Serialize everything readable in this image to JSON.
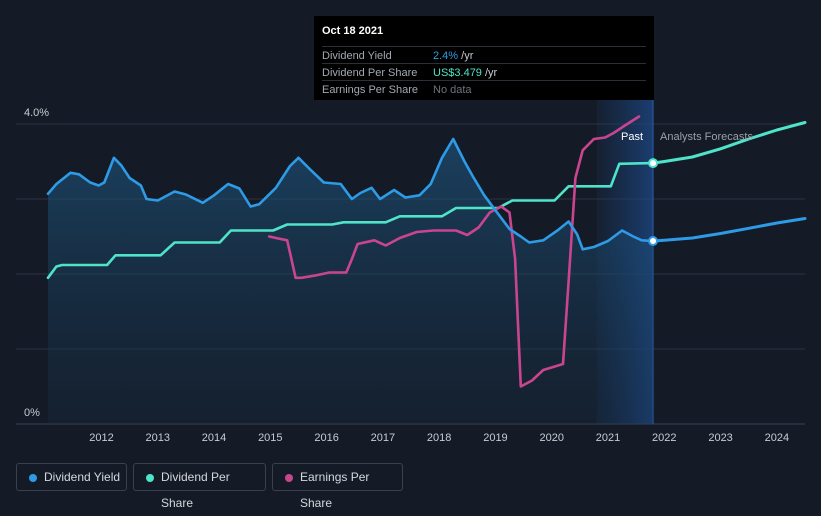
{
  "tooltip": {
    "date": "Oct 18 2021",
    "rows": [
      {
        "label": "Dividend Yield",
        "value": "2.4%",
        "unit": " /yr",
        "color": "#2d9be6"
      },
      {
        "label": "Dividend Per Share",
        "value": "US$3.479",
        "unit": " /yr",
        "color": "#4fe3c9"
      },
      {
        "label": "Earnings Per Share",
        "value": "No data",
        "unit": "",
        "color": "#6d727c"
      }
    ]
  },
  "legend": [
    {
      "label": "Dividend Yield",
      "color": "#2d9be6"
    },
    {
      "label": "Dividend Per Share",
      "color": "#4fe3c9"
    },
    {
      "label": "Earnings Per Share",
      "color": "#c9468f"
    }
  ],
  "chart_data": {
    "type": "line",
    "y_axis_labels": [
      "4.0%",
      "0%"
    ],
    "ylim_percent": [
      0,
      4.0
    ],
    "x_ticks": [
      "2012",
      "2013",
      "2014",
      "2015",
      "2016",
      "2017",
      "2018",
      "2019",
      "2020",
      "2021",
      "2022",
      "2023",
      "2024"
    ],
    "xlim_years": [
      2011.05,
      2024.5
    ],
    "past_label": "Past",
    "forecast_label": "Analysts Forecasts",
    "today": 2021.8,
    "past_band_start": 2020.8,
    "colors": {
      "yield": "#2d9be6",
      "dps": "#4fe3c9",
      "eps": "#c9468f",
      "grid": "#2b3240",
      "axis_text": "#c8ccd2"
    },
    "series": [
      {
        "name": "Dividend Yield",
        "key": "yield",
        "unit": "%",
        "points": [
          [
            2011.05,
            3.07
          ],
          [
            2011.2,
            3.2
          ],
          [
            2011.45,
            3.35
          ],
          [
            2011.6,
            3.33
          ],
          [
            2011.8,
            3.22
          ],
          [
            2011.95,
            3.18
          ],
          [
            2012.05,
            3.22
          ],
          [
            2012.22,
            3.55
          ],
          [
            2012.35,
            3.45
          ],
          [
            2012.5,
            3.28
          ],
          [
            2012.7,
            3.18
          ],
          [
            2012.8,
            3.0
          ],
          [
            2013.0,
            2.98
          ],
          [
            2013.3,
            3.1
          ],
          [
            2013.5,
            3.06
          ],
          [
            2013.8,
            2.95
          ],
          [
            2014.0,
            3.05
          ],
          [
            2014.25,
            3.2
          ],
          [
            2014.45,
            3.14
          ],
          [
            2014.65,
            2.9
          ],
          [
            2014.8,
            2.93
          ],
          [
            2015.1,
            3.15
          ],
          [
            2015.35,
            3.44
          ],
          [
            2015.5,
            3.55
          ],
          [
            2015.7,
            3.4
          ],
          [
            2015.95,
            3.22
          ],
          [
            2016.25,
            3.2
          ],
          [
            2016.45,
            3.0
          ],
          [
            2016.6,
            3.08
          ],
          [
            2016.8,
            3.15
          ],
          [
            2016.95,
            3.0
          ],
          [
            2017.2,
            3.12
          ],
          [
            2017.4,
            3.02
          ],
          [
            2017.65,
            3.05
          ],
          [
            2017.85,
            3.2
          ],
          [
            2018.05,
            3.55
          ],
          [
            2018.25,
            3.8
          ],
          [
            2018.45,
            3.5
          ],
          [
            2018.6,
            3.3
          ],
          [
            2018.8,
            3.05
          ],
          [
            2019.0,
            2.85
          ],
          [
            2019.25,
            2.6
          ],
          [
            2019.45,
            2.5
          ],
          [
            2019.6,
            2.42
          ],
          [
            2019.85,
            2.45
          ],
          [
            2020.1,
            2.58
          ],
          [
            2020.3,
            2.7
          ],
          [
            2020.45,
            2.53
          ],
          [
            2020.55,
            2.33
          ],
          [
            2020.75,
            2.36
          ],
          [
            2021.0,
            2.44
          ],
          [
            2021.25,
            2.58
          ],
          [
            2021.45,
            2.5
          ],
          [
            2021.6,
            2.45
          ],
          [
            2021.8,
            2.44
          ],
          [
            2022.0,
            2.45
          ],
          [
            2022.5,
            2.48
          ],
          [
            2023.0,
            2.54
          ],
          [
            2023.5,
            2.61
          ],
          [
            2024.0,
            2.68
          ],
          [
            2024.5,
            2.74
          ]
        ]
      },
      {
        "name": "Dividend Per Share",
        "key": "dps",
        "unit": "US$",
        "points": [
          [
            2011.05,
            1.95
          ],
          [
            2011.2,
            2.1
          ],
          [
            2011.3,
            2.12
          ],
          [
            2012.1,
            2.12
          ],
          [
            2012.25,
            2.25
          ],
          [
            2013.05,
            2.25
          ],
          [
            2013.3,
            2.42
          ],
          [
            2014.1,
            2.42
          ],
          [
            2014.3,
            2.58
          ],
          [
            2015.05,
            2.58
          ],
          [
            2015.3,
            2.66
          ],
          [
            2016.1,
            2.66
          ],
          [
            2016.3,
            2.69
          ],
          [
            2017.05,
            2.69
          ],
          [
            2017.3,
            2.77
          ],
          [
            2018.05,
            2.77
          ],
          [
            2018.3,
            2.88
          ],
          [
            2019.05,
            2.88
          ],
          [
            2019.3,
            2.98
          ],
          [
            2020.05,
            2.98
          ],
          [
            2020.3,
            3.17
          ],
          [
            2021.05,
            3.17
          ],
          [
            2021.2,
            3.47
          ],
          [
            2021.8,
            3.479
          ],
          [
            2022.0,
            3.5
          ],
          [
            2022.5,
            3.56
          ],
          [
            2023.0,
            3.67
          ],
          [
            2023.5,
            3.8
          ],
          [
            2024.0,
            3.92
          ],
          [
            2024.5,
            4.02
          ]
        ]
      },
      {
        "name": "Earnings Per Share",
        "key": "eps",
        "unit": "",
        "points": [
          [
            2014.98,
            2.5
          ],
          [
            2015.1,
            2.48
          ],
          [
            2015.3,
            2.45
          ],
          [
            2015.45,
            1.95
          ],
          [
            2015.55,
            1.95
          ],
          [
            2015.8,
            1.98
          ],
          [
            2016.05,
            2.02
          ],
          [
            2016.35,
            2.02
          ],
          [
            2016.45,
            2.2
          ],
          [
            2016.55,
            2.4
          ],
          [
            2016.85,
            2.45
          ],
          [
            2017.05,
            2.38
          ],
          [
            2017.3,
            2.48
          ],
          [
            2017.6,
            2.56
          ],
          [
            2017.9,
            2.58
          ],
          [
            2018.3,
            2.58
          ],
          [
            2018.5,
            2.52
          ],
          [
            2018.7,
            2.62
          ],
          [
            2018.9,
            2.82
          ],
          [
            2019.1,
            2.9
          ],
          [
            2019.25,
            2.82
          ],
          [
            2019.35,
            2.2
          ],
          [
            2019.45,
            0.5
          ],
          [
            2019.65,
            0.58
          ],
          [
            2019.85,
            0.72
          ],
          [
            2020.2,
            0.8
          ],
          [
            2020.3,
            1.9
          ],
          [
            2020.42,
            3.28
          ],
          [
            2020.55,
            3.65
          ],
          [
            2020.75,
            3.8
          ],
          [
            2020.95,
            3.82
          ],
          [
            2021.1,
            3.88
          ],
          [
            2021.3,
            3.98
          ],
          [
            2021.55,
            4.1
          ]
        ]
      }
    ]
  }
}
